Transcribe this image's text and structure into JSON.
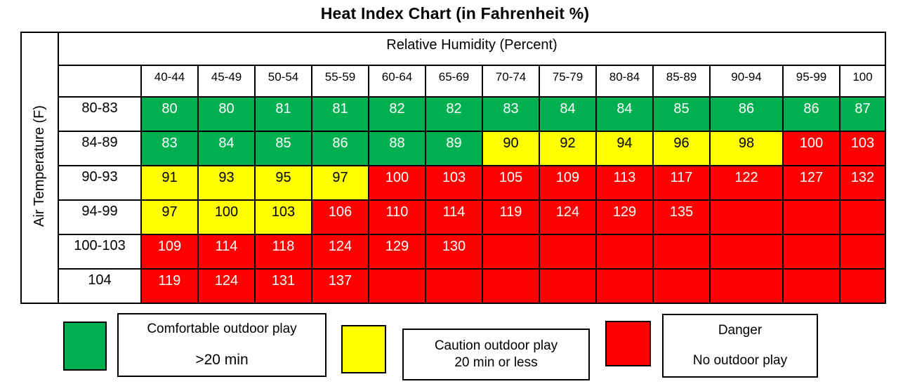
{
  "title": "Heat Index Chart (in Fahrenheit %)",
  "chart_data": {
    "type": "heatmap",
    "title": "Heat Index Chart (in Fahrenheit %)",
    "x_header": "Relative Humidity (Percent)",
    "y_header": "Air Temperature (F)",
    "columns": [
      "40-44",
      "45-49",
      "50-54",
      "55-59",
      "60-64",
      "65-69",
      "70-74",
      "75-79",
      "80-84",
      "85-89",
      "90-94",
      "95-99",
      "100"
    ],
    "rows": [
      {
        "label": "80-83",
        "cells": [
          {
            "v": "80",
            "c": "green"
          },
          {
            "v": "80",
            "c": "green"
          },
          {
            "v": "81",
            "c": "green"
          },
          {
            "v": "81",
            "c": "green"
          },
          {
            "v": "82",
            "c": "green"
          },
          {
            "v": "82",
            "c": "green"
          },
          {
            "v": "83",
            "c": "green"
          },
          {
            "v": "84",
            "c": "green"
          },
          {
            "v": "84",
            "c": "green"
          },
          {
            "v": "85",
            "c": "green"
          },
          {
            "v": "86",
            "c": "green"
          },
          {
            "v": "86",
            "c": "green"
          },
          {
            "v": "87",
            "c": "green"
          }
        ]
      },
      {
        "label": "84-89",
        "cells": [
          {
            "v": "83",
            "c": "green"
          },
          {
            "v": "84",
            "c": "green"
          },
          {
            "v": "85",
            "c": "green"
          },
          {
            "v": "86",
            "c": "green"
          },
          {
            "v": "88",
            "c": "green"
          },
          {
            "v": "89",
            "c": "green"
          },
          {
            "v": "90",
            "c": "yellow"
          },
          {
            "v": "92",
            "c": "yellow"
          },
          {
            "v": "94",
            "c": "yellow"
          },
          {
            "v": "96",
            "c": "yellow"
          },
          {
            "v": "98",
            "c": "yellow"
          },
          {
            "v": "100",
            "c": "red"
          },
          {
            "v": "103",
            "c": "red"
          }
        ]
      },
      {
        "label": "90-93",
        "cells": [
          {
            "v": "91",
            "c": "yellow"
          },
          {
            "v": "93",
            "c": "yellow"
          },
          {
            "v": "95",
            "c": "yellow"
          },
          {
            "v": "97",
            "c": "yellow"
          },
          {
            "v": "100",
            "c": "red"
          },
          {
            "v": "103",
            "c": "red"
          },
          {
            "v": "105",
            "c": "red"
          },
          {
            "v": "109",
            "c": "red"
          },
          {
            "v": "113",
            "c": "red"
          },
          {
            "v": "117",
            "c": "red"
          },
          {
            "v": "122",
            "c": "red"
          },
          {
            "v": "127",
            "c": "red"
          },
          {
            "v": "132",
            "c": "red"
          }
        ]
      },
      {
        "label": "94-99",
        "cells": [
          {
            "v": "97",
            "c": "yellow"
          },
          {
            "v": "100",
            "c": "yellow"
          },
          {
            "v": "103",
            "c": "yellow"
          },
          {
            "v": "106",
            "c": "red"
          },
          {
            "v": "110",
            "c": "red"
          },
          {
            "v": "114",
            "c": "red"
          },
          {
            "v": "119",
            "c": "red"
          },
          {
            "v": "124",
            "c": "red"
          },
          {
            "v": "129",
            "c": "red"
          },
          {
            "v": "135",
            "c": "red"
          },
          {
            "v": "",
            "c": "red"
          },
          {
            "v": "",
            "c": "red"
          },
          {
            "v": "",
            "c": "red"
          }
        ]
      },
      {
        "label": "100-103",
        "cells": [
          {
            "v": "109",
            "c": "red"
          },
          {
            "v": "114",
            "c": "red"
          },
          {
            "v": "118",
            "c": "red"
          },
          {
            "v": "124",
            "c": "red"
          },
          {
            "v": "129",
            "c": "red"
          },
          {
            "v": "130",
            "c": "red"
          },
          {
            "v": "",
            "c": "red"
          },
          {
            "v": "",
            "c": "red"
          },
          {
            "v": "",
            "c": "red"
          },
          {
            "v": "",
            "c": "red"
          },
          {
            "v": "",
            "c": "red"
          },
          {
            "v": "",
            "c": "red"
          },
          {
            "v": "",
            "c": "red"
          }
        ]
      },
      {
        "label": "104",
        "cells": [
          {
            "v": "119",
            "c": "red"
          },
          {
            "v": "124",
            "c": "red"
          },
          {
            "v": "131",
            "c": "red"
          },
          {
            "v": "137",
            "c": "red"
          },
          {
            "v": "",
            "c": "red"
          },
          {
            "v": "",
            "c": "red"
          },
          {
            "v": "",
            "c": "red"
          },
          {
            "v": "",
            "c": "red"
          },
          {
            "v": "",
            "c": "red"
          },
          {
            "v": "",
            "c": "red"
          },
          {
            "v": "",
            "c": "red"
          },
          {
            "v": "",
            "c": "red"
          },
          {
            "v": "",
            "c": "red"
          }
        ]
      }
    ],
    "colors": {
      "green": "#00B050",
      "yellow": "#FFFF00",
      "red": "#FF0000"
    },
    "text_colors": {
      "green": "#FFFFFF",
      "yellow": "#000000",
      "red": "#FFFFFF"
    },
    "legend_position": "bottom",
    "grid": true
  },
  "legend": {
    "items": [
      {
        "swatch_color_name": "green",
        "lines": [
          "Comfortable outdoor play",
          ">20 min"
        ]
      },
      {
        "swatch_color_name": "yellow",
        "lines": [
          "Caution outdoor play",
          "20 min or less"
        ]
      },
      {
        "swatch_color_name": "red",
        "lines": [
          "Danger",
          "No outdoor play"
        ]
      }
    ]
  }
}
